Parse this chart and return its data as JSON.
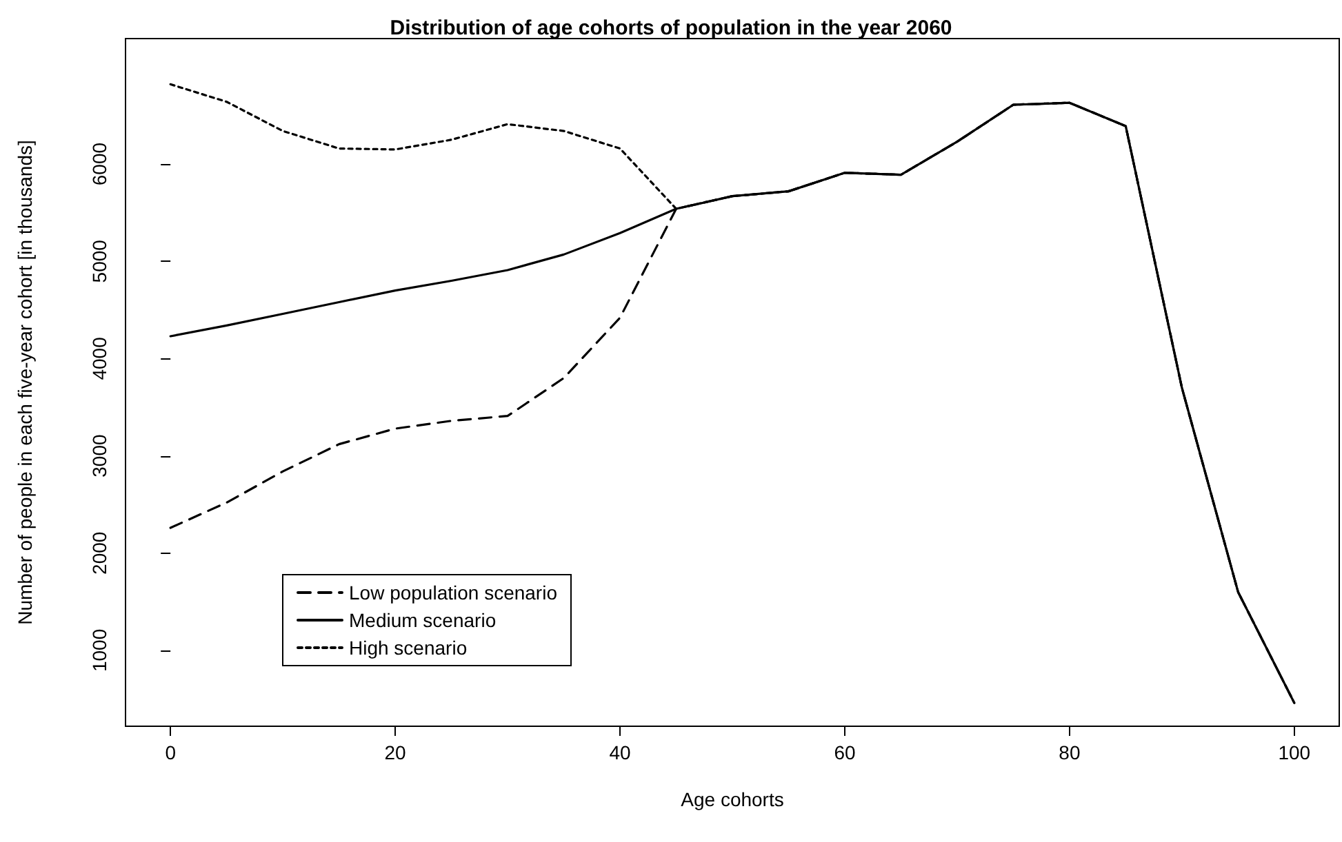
{
  "chart_data": {
    "type": "line",
    "title": "Distribution of age cohorts of population in the year 2060",
    "xlabel": "Age cohorts",
    "ylabel": "Number of people in each five-year cohort [in thousands]",
    "x": [
      0,
      5,
      10,
      15,
      20,
      25,
      30,
      35,
      40,
      45,
      50,
      55,
      60,
      65,
      70,
      75,
      80,
      85,
      90,
      95,
      100
    ],
    "series": [
      {
        "name": "Low population scenario",
        "color": "#000000",
        "line_style": "dashed",
        "values": [
          2260,
          2520,
          2840,
          3120,
          3280,
          3360,
          3410,
          3800,
          4420,
          5540,
          5670,
          5720,
          5910,
          5890,
          6230,
          6610,
          6630,
          6390,
          3700,
          1600,
          460
        ]
      },
      {
        "name": "Medium scenario",
        "color": "#000000",
        "line_style": "solid",
        "values": [
          4230,
          4340,
          4460,
          4580,
          4700,
          4800,
          4910,
          5070,
          5290,
          5540,
          5670,
          5720,
          5910,
          5890,
          6230,
          6610,
          6630,
          6390,
          3700,
          1600,
          460
        ]
      },
      {
        "name": "High scenario",
        "color": "#000000",
        "line_style": "dotted",
        "values": [
          6820,
          6640,
          6340,
          6160,
          6150,
          6250,
          6410,
          6340,
          6160,
          5540,
          5670,
          5720,
          5910,
          5890,
          6230,
          6610,
          6630,
          6390,
          3700,
          1600,
          460
        ]
      }
    ],
    "xlim": [
      -4,
      104
    ],
    "xticks": [
      0,
      20,
      40,
      60,
      80,
      100
    ],
    "ylim": [
      220,
      7290
    ],
    "yticks": [
      1000,
      2000,
      3000,
      4000,
      5000,
      6000
    ],
    "grid": false,
    "legend": "bottom left",
    "marker": "none"
  }
}
